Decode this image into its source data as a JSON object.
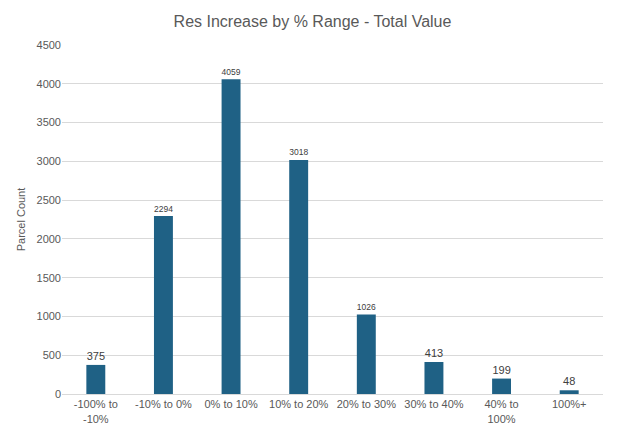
{
  "chart_data": {
    "type": "bar",
    "title": "Res Increase by % Range - Total Value",
    "y_label": "Parcel Count",
    "categories": [
      "-100% to -10%",
      "-10% to 0%",
      "0% to 10%",
      "10% to 20%",
      "20% to 30%",
      "30% to 40%",
      "40% to 100%",
      "100%+"
    ],
    "values": [
      375,
      2294,
      4059,
      3018,
      1026,
      413,
      199,
      48
    ],
    "color": "#1f6185",
    "ylim": [
      0,
      4500
    ],
    "yticks": [
      0,
      500,
      1000,
      1500,
      2000,
      2500,
      3000,
      3500,
      4000,
      4500
    ],
    "grid": true,
    "data_labels": true
  }
}
